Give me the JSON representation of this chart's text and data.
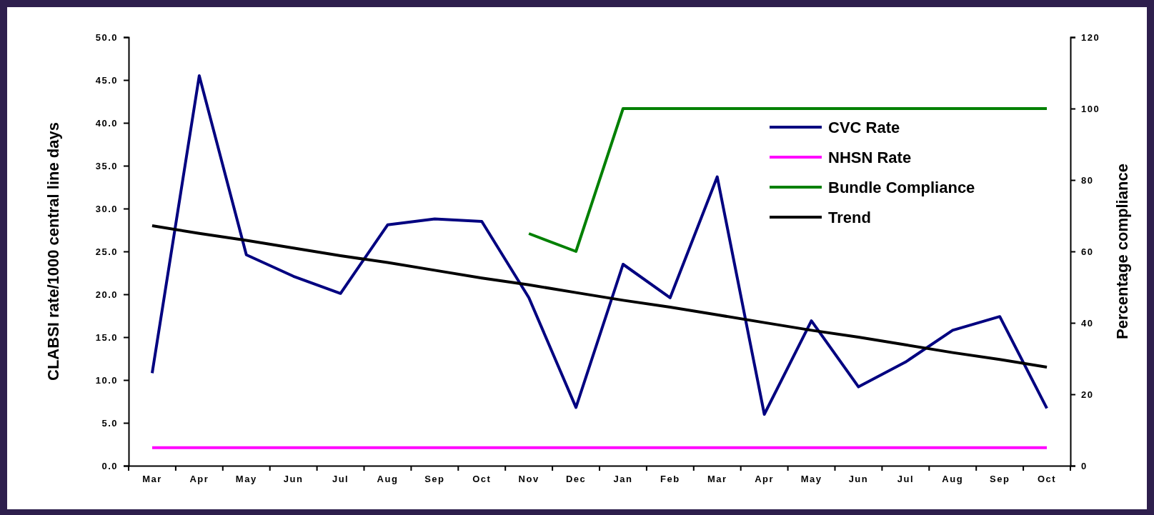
{
  "chart_data": {
    "type": "line",
    "ylabel": "CLABSI rate/1000 central line days",
    "y2label": "Percentage compliance",
    "categories": [
      "Mar",
      "Apr",
      "May",
      "Jun",
      "Jul",
      "Aug",
      "Sep",
      "Oct",
      "Nov",
      "Dec",
      "Jan",
      "Feb",
      "Mar",
      "Apr",
      "May",
      "Jun",
      "Jul",
      "Aug",
      "Sep",
      "Oct"
    ],
    "series": [
      {
        "name": "CVC Rate",
        "color": "#000080",
        "values": [
          10.8,
          45.5,
          24.6,
          22.1,
          20.1,
          28.1,
          28.8,
          28.5,
          19.6,
          6.8,
          23.5,
          19.6,
          33.7,
          6.0,
          16.9,
          9.2,
          12.1,
          15.8,
          17.4,
          6.7
        ]
      },
      {
        "name": "NHSN Rate",
        "color": "#ff00ff",
        "values": [
          2.1,
          2.1,
          2.1,
          2.1,
          2.1,
          2.1,
          2.1,
          2.1,
          2.1,
          2.1,
          2.1,
          2.1,
          2.1,
          2.1,
          2.1,
          2.1,
          2.1,
          2.1,
          2.1,
          2.1
        ]
      },
      {
        "name": "Bundle Compliance",
        "color": "#008000",
        "axis": "y2",
        "values": [
          null,
          null,
          null,
          null,
          null,
          null,
          null,
          null,
          65,
          60,
          100,
          100,
          100,
          100,
          100,
          100,
          100,
          100,
          100,
          100
        ]
      },
      {
        "name": "Trend",
        "color": "#000000",
        "values": [
          28.0,
          27.1,
          26.3,
          25.4,
          24.5,
          23.7,
          22.8,
          21.9,
          21.1,
          20.2,
          19.3,
          18.5,
          17.6,
          16.7,
          15.8,
          15.0,
          14.1,
          13.2,
          12.4,
          11.5
        ]
      }
    ],
    "ylim": [
      0,
      50
    ],
    "yticks": [
      {
        "value": 0,
        "label": "0.0"
      },
      {
        "value": 5,
        "label": "5.0"
      },
      {
        "value": 10,
        "label": "10.0"
      },
      {
        "value": 15,
        "label": "15.0"
      },
      {
        "value": 20,
        "label": "20.0"
      },
      {
        "value": 25,
        "label": "25.0"
      },
      {
        "value": 30,
        "label": "30.0"
      },
      {
        "value": 35,
        "label": "35.0"
      },
      {
        "value": 40,
        "label": "40.0"
      },
      {
        "value": 45,
        "label": "45.0"
      },
      {
        "value": 50,
        "label": "50.0"
      }
    ],
    "y2lim": [
      0,
      120
    ],
    "y2ticks": [
      0,
      20,
      40,
      60,
      80,
      100,
      120
    ],
    "grid": false,
    "legend": "top right",
    "marker": "none",
    "line_style": "solid"
  }
}
